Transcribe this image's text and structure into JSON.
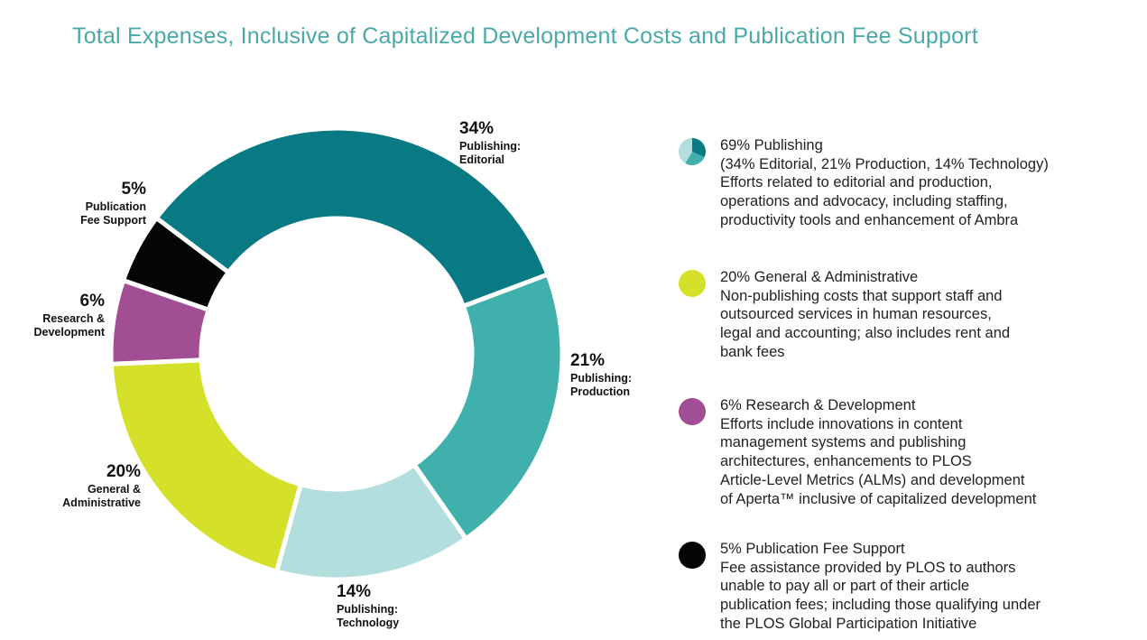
{
  "title": "Total Expenses, Inclusive of Capitalized Development Costs and Publication Fee Support",
  "chart_data": {
    "type": "pie",
    "title": "Total Expenses, Inclusive of Capitalized Development Costs and Publication Fee Support",
    "slices": [
      {
        "id": "editorial",
        "pct_text": "34%",
        "label_lines": "Publishing:\nEditorial",
        "value": 34,
        "color": "#087a83"
      },
      {
        "id": "production",
        "pct_text": "21%",
        "label_lines": "Publishing:\nProduction",
        "value": 21,
        "color": "#3fb0ab"
      },
      {
        "id": "technology",
        "pct_text": "14%",
        "label_lines": "Publishing:\nTechnology",
        "value": 14,
        "color": "#b2dfdd"
      },
      {
        "id": "general",
        "pct_text": "20%",
        "label_lines": "General &\nAdministrative",
        "value": 20,
        "color": "#d5e02b"
      },
      {
        "id": "research",
        "pct_text": "6%",
        "label_lines": "Research &\nDevelopment",
        "value": 6,
        "color": "#a14e94"
      },
      {
        "id": "fee",
        "pct_text": "5%",
        "label_lines": "Publication\nFee Support",
        "value": 5,
        "color": "#050505"
      }
    ]
  },
  "legend": [
    {
      "id": "publishing",
      "icon": "teal-pie-icon",
      "color": "#087a83",
      "lines": [
        "69% Publishing",
        "(34% Editorial, 21% Production, 14% Technology)",
        "Efforts related to editorial and production,",
        "operations and advocacy, including staffing,",
        "productivity tools and enhancement of Ambra"
      ]
    },
    {
      "id": "general",
      "icon": "yellow-dot-icon",
      "color": "#d5e02b",
      "lines": [
        "20% General & Administrative",
        "Non-publishing costs that support staff and",
        "outsourced services in human resources,",
        "legal and accounting; also includes rent and",
        "bank fees"
      ]
    },
    {
      "id": "research",
      "icon": "purple-dot-icon",
      "color": "#a14e94",
      "lines": [
        "6% Research & Development",
        "Efforts include innovations in content",
        "management systems and publishing",
        "architectures, enhancements to PLOS",
        "Article-Level Metrics (ALMs) and development",
        "of Aperta™ inclusive of capitalized development"
      ]
    },
    {
      "id": "fee",
      "icon": "black-dot-icon",
      "color": "#050505",
      "lines": [
        "5% Publication Fee Support",
        "Fee assistance provided by PLOS to authors",
        "unable to pay all or part of their article",
        "publication fees; including those qualifying under",
        "the PLOS Global Participation Initiative"
      ]
    }
  ]
}
